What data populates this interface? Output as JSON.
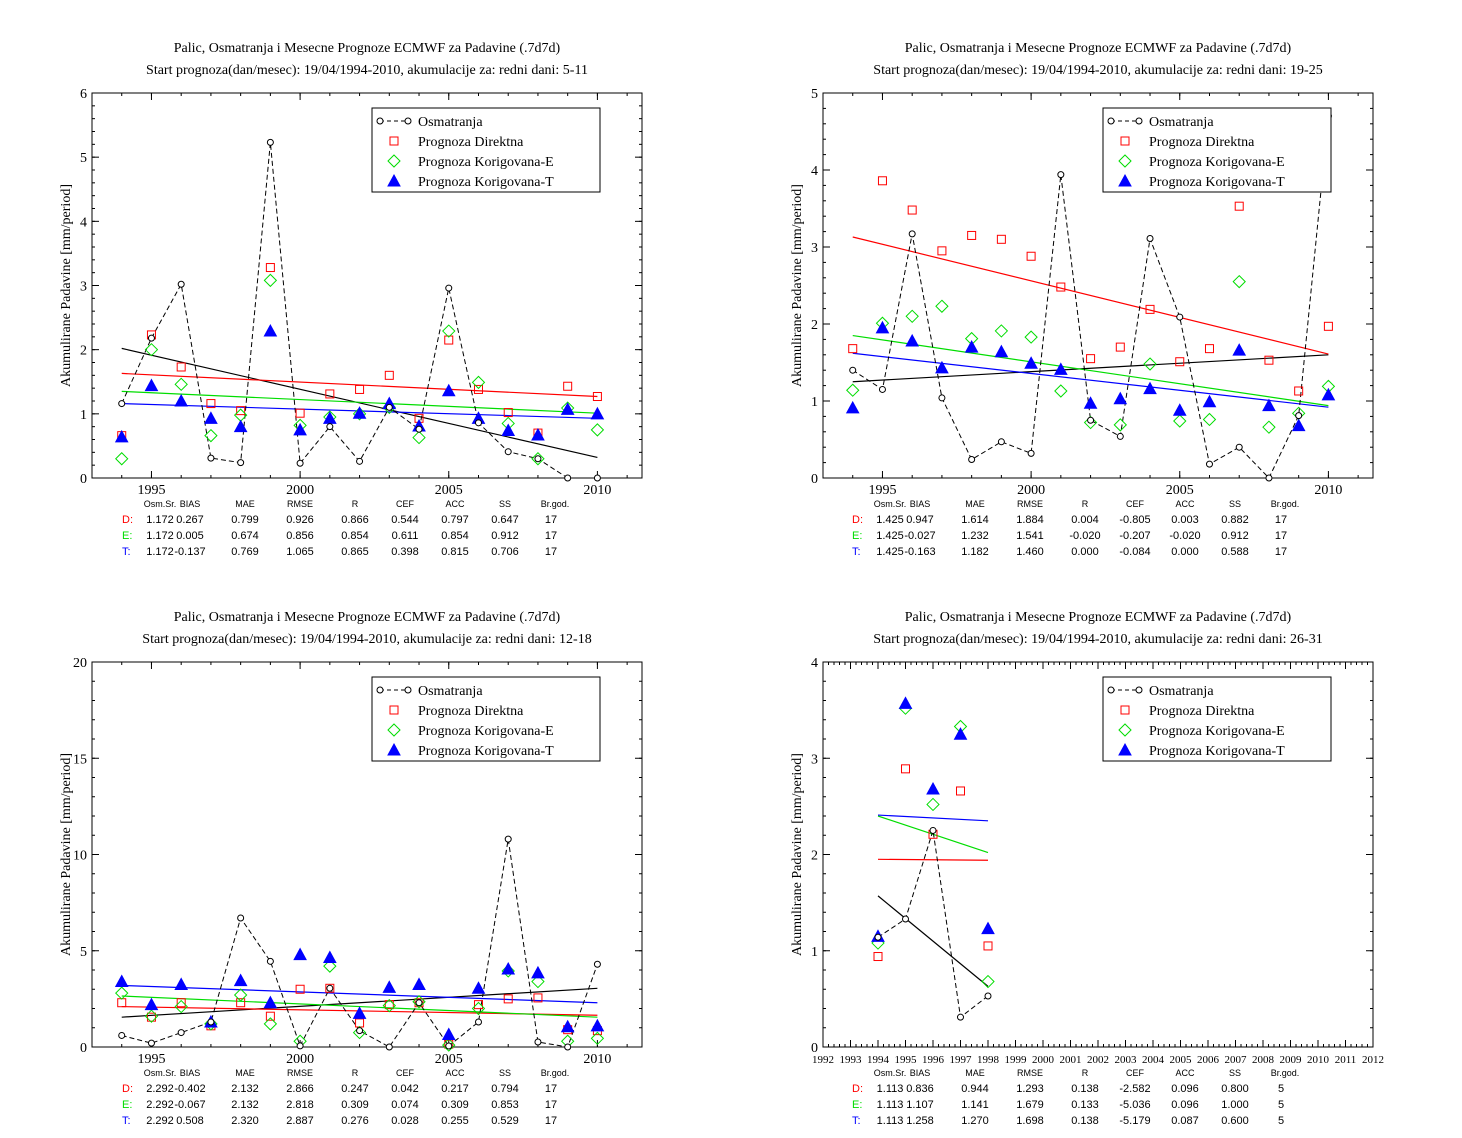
{
  "stats_header": [
    "Osm.Sr.",
    "BIAS",
    "MAE",
    "RMSE",
    "R",
    "CEF",
    "ACC",
    "SS",
    "Br.god."
  ],
  "legend": {
    "obs": "Osmatranja",
    "direct": "Prognoza Direktna",
    "corr_e": "Prognoza Korigovana-E",
    "corr_t": "Prognoza Korigovana-T"
  },
  "colors": {
    "obs": "#000000",
    "direct": "#ff0000",
    "corr_e": "#00dd00",
    "corr_t": "#0000ff"
  },
  "chart_data": [
    {
      "type": "scatter",
      "title": "Palic, Osmatranja i Mesecne Prognoze ECMWF za Padavine (.7d7d)",
      "subtitle": "Start prognoza(dan/mesec): 19/04/1994-2010, akumulacije za: redni dani: 5-11",
      "ylabel": "Akumulirane Padavine [mm/period]",
      "xlim": [
        1993,
        2011.5
      ],
      "ylim": [
        0,
        6
      ],
      "xticks": [
        1995,
        2000,
        2005,
        2010
      ],
      "yticks": [
        0,
        1,
        2,
        3,
        4,
        5,
        6
      ],
      "x": [
        1994,
        1995,
        1996,
        1997,
        1998,
        1999,
        2000,
        2001,
        2002,
        2003,
        2004,
        2005,
        2006,
        2007,
        2008,
        2009,
        2010
      ],
      "series": [
        {
          "name": "Osmatranja",
          "values": [
            1.16,
            2.18,
            3.02,
            0.31,
            0.24,
            5.23,
            0.23,
            0.8,
            0.26,
            1.1,
            0.76,
            2.96,
            0.86,
            0.41,
            0.3,
            0.0,
            0.0
          ]
        },
        {
          "name": "Prognoza Direktna",
          "values": [
            0.66,
            2.23,
            1.73,
            1.16,
            1.05,
            3.28,
            1.01,
            1.31,
            1.38,
            1.6,
            0.93,
            2.15,
            1.38,
            1.02,
            0.7,
            1.43,
            1.27
          ]
        },
        {
          "name": "Prognoza Korigovana-E",
          "values": [
            0.3,
            2.0,
            1.46,
            0.66,
            0.98,
            3.08,
            0.82,
            0.95,
            1.0,
            1.1,
            0.63,
            2.29,
            1.49,
            0.85,
            0.3,
            1.09,
            0.75
          ]
        },
        {
          "name": "Prognoza Korigovana-T",
          "values": [
            0.64,
            1.44,
            1.2,
            0.93,
            0.8,
            2.29,
            0.75,
            0.93,
            1.01,
            1.16,
            0.81,
            1.36,
            0.93,
            0.74,
            0.67,
            1.07,
            1.0
          ]
        }
      ],
      "trends": [
        [
          2.02,
          0.32
        ],
        [
          1.63,
          1.27
        ],
        [
          1.35,
          1.01
        ],
        [
          1.16,
          0.93
        ]
      ],
      "stats": [
        [
          "D:",
          "1.172",
          "0.267",
          "0.799",
          "0.926",
          "0.866",
          "0.544",
          "0.797",
          "0.647",
          "17"
        ],
        [
          "E:",
          "1.172",
          "0.005",
          "0.674",
          "0.856",
          "0.854",
          "0.611",
          "0.854",
          "0.912",
          "17"
        ],
        [
          "T:",
          "1.172",
          "-0.137",
          "0.769",
          "1.065",
          "0.865",
          "0.398",
          "0.815",
          "0.706",
          "17"
        ]
      ]
    },
    {
      "type": "scatter",
      "title": "Palic, Osmatranja i Mesecne Prognoze ECMWF za Padavine (.7d7d)",
      "subtitle": "Start prognoza(dan/mesec): 19/04/1994-2010, akumulacije za: redni dani: 19-25",
      "ylabel": "Akumulirane Padavine [mm/period]",
      "xlim": [
        1993,
        2011.5
      ],
      "ylim": [
        0,
        5
      ],
      "xticks": [
        1995,
        2000,
        2005,
        2010
      ],
      "yticks": [
        0,
        1,
        2,
        3,
        4,
        5
      ],
      "x": [
        1994,
        1995,
        1996,
        1997,
        1998,
        1999,
        2000,
        2001,
        2002,
        2003,
        2004,
        2005,
        2006,
        2007,
        2008,
        2009,
        2010
      ],
      "series": [
        {
          "name": "Osmatranja",
          "values": [
            1.4,
            1.15,
            3.17,
            1.04,
            0.24,
            0.47,
            0.32,
            3.94,
            0.75,
            0.54,
            3.11,
            2.09,
            0.18,
            0.4,
            0.0,
            0.81,
            4.7
          ]
        },
        {
          "name": "Prognoza Direktna",
          "values": [
            1.68,
            3.86,
            3.48,
            2.95,
            3.15,
            3.1,
            2.88,
            2.48,
            1.55,
            1.7,
            2.19,
            1.51,
            1.68,
            3.53,
            1.53,
            1.13,
            1.97
          ]
        },
        {
          "name": "Prognoza Korigovana-E",
          "values": [
            1.14,
            2.01,
            2.1,
            2.23,
            1.81,
            1.91,
            1.83,
            1.13,
            0.72,
            0.69,
            1.48,
            0.74,
            0.76,
            2.55,
            0.66,
            0.84,
            1.19
          ]
        },
        {
          "name": "Prognoza Korigovana-T",
          "values": [
            0.91,
            1.95,
            1.78,
            1.43,
            1.7,
            1.64,
            1.49,
            1.41,
            0.97,
            1.03,
            1.16,
            0.88,
            0.99,
            1.66,
            0.94,
            0.68,
            1.08
          ]
        }
      ],
      "trends": [
        [
          1.25,
          1.6
        ],
        [
          3.13,
          1.61
        ],
        [
          1.85,
          0.94
        ],
        [
          1.62,
          0.92
        ]
      ],
      "stats": [
        [
          "D:",
          "1.425",
          "0.947",
          "1.614",
          "1.884",
          "0.004",
          "-0.805",
          "0.003",
          "0.882",
          "17"
        ],
        [
          "E:",
          "1.425",
          "-0.027",
          "1.232",
          "1.541",
          "-0.020",
          "-0.207",
          "-0.020",
          "0.912",
          "17"
        ],
        [
          "T:",
          "1.425",
          "-0.163",
          "1.182",
          "1.460",
          "0.000",
          "-0.084",
          "0.000",
          "0.588",
          "17"
        ]
      ]
    },
    {
      "type": "scatter",
      "title": "Palic, Osmatranja i Mesecne Prognoze ECMWF za Padavine (.7d7d)",
      "subtitle": "Start prognoza(dan/mesec): 19/04/1994-2010, akumulacije za: redni dani: 12-18",
      "ylabel": "Akumulirane Padavine [mm/period]",
      "xlim": [
        1993,
        2011.5
      ],
      "ylim": [
        0,
        20
      ],
      "xticks": [
        1995,
        2000,
        2005,
        2010
      ],
      "yticks": [
        0,
        5,
        10,
        15,
        20
      ],
      "x": [
        1994,
        1995,
        1996,
        1997,
        1998,
        1999,
        2000,
        2001,
        2002,
        2003,
        2004,
        2005,
        2006,
        2007,
        2008,
        2009,
        2010
      ],
      "series": [
        {
          "name": "Osmatranja",
          "values": [
            0.6,
            0.2,
            0.75,
            1.3,
            6.7,
            4.45,
            0.06,
            3.05,
            0.85,
            0.0,
            2.3,
            0.05,
            1.3,
            10.8,
            0.26,
            0.0,
            4.3
          ]
        },
        {
          "name": "Prognoza Direktna",
          "values": [
            2.3,
            1.55,
            2.3,
            1.1,
            2.3,
            1.6,
            3.0,
            3.05,
            1.25,
            2.2,
            2.3,
            0.15,
            2.2,
            2.5,
            2.55,
            0.9,
            0.85
          ]
        },
        {
          "name": "Prognoza Korigovana-E",
          "values": [
            2.8,
            1.6,
            2.1,
            1.2,
            2.7,
            1.2,
            0.3,
            4.2,
            0.75,
            2.15,
            2.35,
            0.1,
            2.0,
            3.95,
            3.4,
            0.3,
            0.45
          ]
        },
        {
          "name": "Prognoza Korigovana-T",
          "values": [
            3.4,
            2.2,
            3.25,
            1.3,
            3.45,
            2.3,
            4.8,
            4.65,
            1.75,
            3.1,
            3.25,
            0.65,
            3.05,
            4.05,
            3.85,
            1.05,
            1.1
          ]
        }
      ],
      "trends": [
        [
          1.55,
          3.05
        ],
        [
          2.1,
          1.65
        ],
        [
          2.65,
          1.55
        ],
        [
          3.2,
          2.3
        ]
      ],
      "stats": [
        [
          "D:",
          "2.292",
          "-0.402",
          "2.132",
          "2.866",
          "0.247",
          "0.042",
          "0.217",
          "0.794",
          "17"
        ],
        [
          "E:",
          "2.292",
          "-0.067",
          "2.132",
          "2.818",
          "0.309",
          "0.074",
          "0.309",
          "0.853",
          "17"
        ],
        [
          "T:",
          "2.292",
          "0.508",
          "2.320",
          "2.887",
          "0.276",
          "0.028",
          "0.255",
          "0.529",
          "17"
        ]
      ]
    },
    {
      "type": "scatter",
      "title": "Palic, Osmatranja i Mesecne Prognoze ECMWF za Padavine (.7d7d)",
      "subtitle": "Start prognoza(dan/mesec): 19/04/1994-2010, akumulacije za: redni dani: 26-31",
      "ylabel": "Akumulirane Padavine [mm/period]",
      "xlim": [
        1992,
        2012
      ],
      "ylim": [
        0,
        4
      ],
      "xticks": [
        1992,
        1993,
        1994,
        1995,
        1996,
        1997,
        1998,
        1999,
        2000,
        2001,
        2002,
        2003,
        2004,
        2005,
        2006,
        2007,
        2008,
        2009,
        2010,
        2011,
        2012
      ],
      "yticks": [
        0,
        1,
        2,
        3,
        4
      ],
      "x": [
        1994,
        1995,
        1996,
        1997,
        1998
      ],
      "series": [
        {
          "name": "Osmatranja",
          "values": [
            1.14,
            1.33,
            2.25,
            0.31,
            0.53
          ]
        },
        {
          "name": "Prognoza Direktna",
          "values": [
            0.94,
            2.89,
            2.21,
            2.66,
            1.05
          ]
        },
        {
          "name": "Prognoza Korigovana-E",
          "values": [
            1.08,
            3.52,
            2.52,
            3.33,
            0.68
          ]
        },
        {
          "name": "Prognoza Korigovana-T",
          "values": [
            1.15,
            3.57,
            2.68,
            3.25,
            1.23
          ]
        }
      ],
      "trends": [
        [
          1.57,
          0.63
        ],
        [
          1.95,
          1.94
        ],
        [
          2.4,
          2.02
        ],
        [
          2.41,
          2.35
        ]
      ],
      "stats": [
        [
          "D:",
          "1.113",
          "0.836",
          "0.944",
          "1.293",
          "0.138",
          "-2.582",
          "0.096",
          "0.800",
          "5"
        ],
        [
          "E:",
          "1.113",
          "1.107",
          "1.141",
          "1.679",
          "0.133",
          "-5.036",
          "0.096",
          "1.000",
          "5"
        ],
        [
          "T:",
          "1.113",
          "1.258",
          "1.270",
          "1.698",
          "0.138",
          "-5.179",
          "0.087",
          "0.600",
          "5"
        ]
      ]
    }
  ]
}
